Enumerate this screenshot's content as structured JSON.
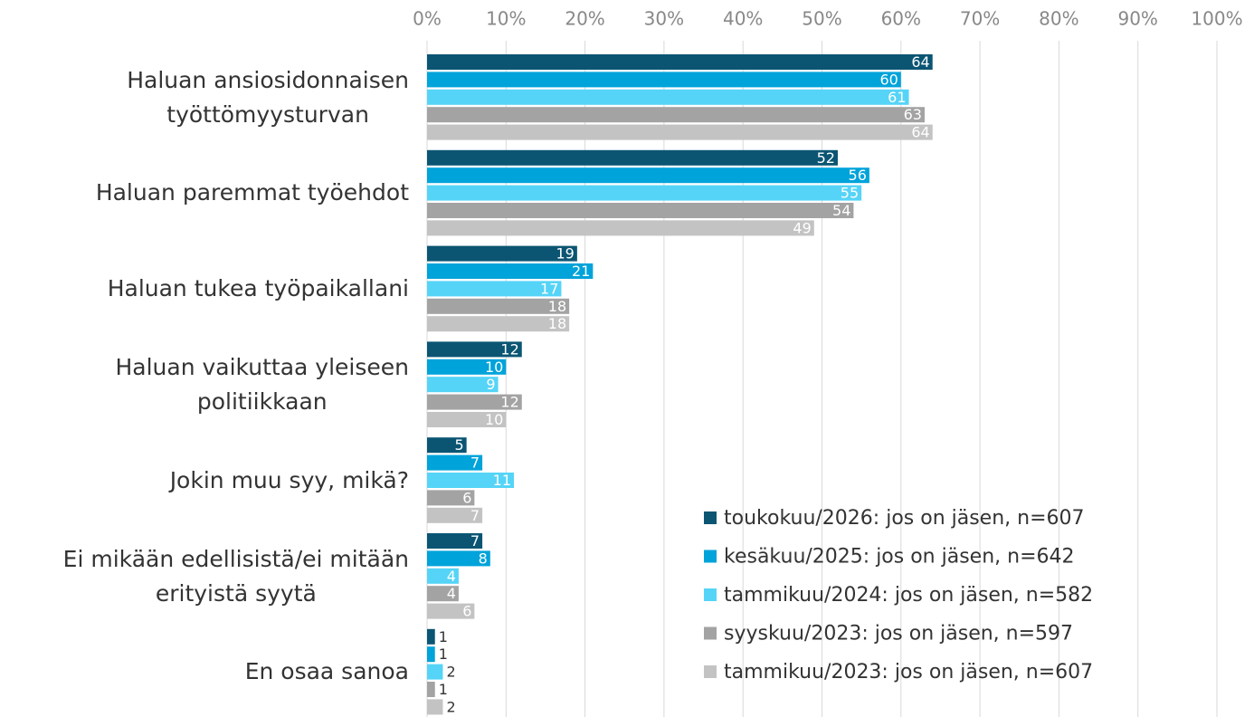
{
  "chart_data": {
    "type": "bar",
    "orientation": "horizontal",
    "categories": [
      "Haluan ansiosidonnaisen\ntyöttömyysturvan",
      "Haluan paremmat työehdot",
      "Haluan tukea työpaikallani",
      "Haluan vaikuttaa yleiseen\npolitiikkaan",
      "Jokin muu syy, mikä?",
      "Ei mikään edellisistä/ei mitään\nerityistä syytä",
      "En osaa sanoa"
    ],
    "series": [
      {
        "name": "toukokuu/2026: jos on jäsen, n=607",
        "color": "#0b5573",
        "values": [
          64,
          52,
          19,
          12,
          5,
          7,
          1
        ]
      },
      {
        "name": "kesäkuu/2025: jos on jäsen, n=642",
        "color": "#00a3da",
        "values": [
          60,
          56,
          21,
          10,
          7,
          8,
          1
        ]
      },
      {
        "name": "tammikuu/2024: jos on jäsen, n=582",
        "color": "#55d4f7",
        "values": [
          61,
          55,
          17,
          9,
          11,
          4,
          2
        ]
      },
      {
        "name": "syyskuu/2023: jos on jäsen, n=597",
        "color": "#a3a3a3",
        "values": [
          63,
          54,
          18,
          12,
          6,
          4,
          1
        ]
      },
      {
        "name": "tammikuu/2023: jos on jäsen, n=607",
        "color": "#c3c3c3",
        "values": [
          64,
          49,
          18,
          10,
          7,
          6,
          2
        ]
      }
    ],
    "xlim": [
      0,
      100
    ],
    "xticks": [
      {
        "value": 0,
        "label": "0%"
      },
      {
        "value": 10,
        "label": "10%"
      },
      {
        "value": 20,
        "label": "20%"
      },
      {
        "value": 30,
        "label": "30%"
      },
      {
        "value": 40,
        "label": "40%"
      },
      {
        "value": 50,
        "label": "50%"
      },
      {
        "value": 60,
        "label": "60%"
      },
      {
        "value": 70,
        "label": "70%"
      },
      {
        "value": 80,
        "label": "80%"
      },
      {
        "value": 90,
        "label": "90%"
      },
      {
        "value": 100,
        "label": "100%"
      }
    ],
    "grid": true,
    "legend": "lower right"
  }
}
